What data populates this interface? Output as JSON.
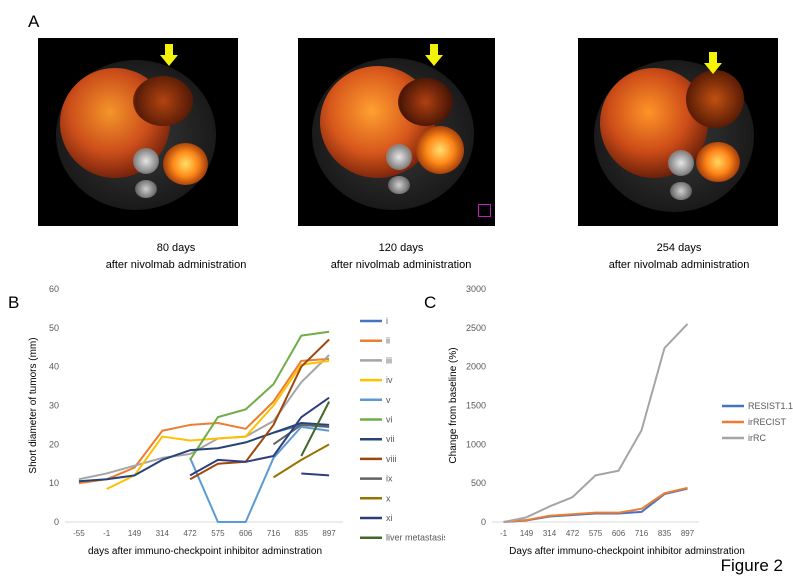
{
  "panel_a": {
    "letter": "A",
    "captions": [
      {
        "days": "80 days",
        "text": "after nivolmab administration"
      },
      {
        "days": "120 days",
        "text": "after nivolmab administration"
      },
      {
        "days": "254 days",
        "text": "after nivolmab administration"
      }
    ],
    "arrow_color": "#f5f20a"
  },
  "figure_label": "Figure 2",
  "chart_data": [
    {
      "type": "line",
      "letter": "B",
      "categories": [
        "-55",
        "-1",
        "149",
        "314",
        "472",
        "575",
        "606",
        "716",
        "835",
        "897"
      ],
      "ylabel": "Short diameter of tumors (mm)",
      "xlabel": "days after immuno-checkpoint inhibitor adminstration",
      "ylim": [
        0,
        60
      ],
      "yticks": [
        0,
        10,
        20,
        30,
        40,
        50,
        60
      ],
      "grid": false,
      "legend_position": "right",
      "series": [
        {
          "name": "i",
          "color": "#4472c4",
          "values": [
            null,
            null,
            null,
            null,
            null,
            null,
            null,
            23,
            25,
            24.5
          ]
        },
        {
          "name": "ii",
          "color": "#ed7d31",
          "values": [
            10,
            11,
            14,
            23.5,
            25,
            25.5,
            24,
            31,
            41.5,
            42
          ]
        },
        {
          "name": "iii",
          "color": "#a5a5a5",
          "values": [
            11,
            12.5,
            14.5,
            16.5,
            17.5,
            21.5,
            22,
            26,
            36,
            43
          ]
        },
        {
          "name": "iv",
          "color": "#ffc000",
          "values": [
            null,
            8.5,
            12,
            22,
            21,
            21.5,
            22,
            30,
            40.5,
            41.5
          ]
        },
        {
          "name": "v",
          "color": "#5b9bd5",
          "values": [
            null,
            null,
            null,
            null,
            16.5,
            0,
            0,
            16.5,
            24.5,
            23.5
          ]
        },
        {
          "name": "vi",
          "color": "#70ad47",
          "values": [
            null,
            null,
            null,
            null,
            16,
            27,
            29,
            35.5,
            48,
            49
          ]
        },
        {
          "name": "vii",
          "color": "#264478",
          "values": [
            10.5,
            11,
            12,
            16,
            18.5,
            19,
            20.5,
            23,
            25.5,
            25
          ]
        },
        {
          "name": "viii",
          "color": "#9e480e",
          "values": [
            null,
            null,
            null,
            null,
            11,
            15,
            15.5,
            25,
            40,
            47
          ]
        },
        {
          "name": "ix",
          "color": "#636363",
          "values": [
            null,
            null,
            null,
            null,
            null,
            null,
            null,
            20,
            25,
            24.5
          ]
        },
        {
          "name": "x",
          "color": "#997300",
          "values": [
            null,
            null,
            null,
            null,
            null,
            null,
            null,
            11.5,
            16,
            20
          ]
        },
        {
          "name": "xi",
          "color": "#2f3f7d",
          "values": [
            null,
            null,
            null,
            null,
            12,
            16,
            15.5,
            17,
            27,
            32
          ]
        },
        {
          "name": "liver metastasis",
          "color": "#43682b",
          "values": [
            null,
            null,
            null,
            null,
            null,
            null,
            null,
            null,
            17,
            31
          ]
        }
      ],
      "extra_segments": [
        {
          "series": "xi",
          "from": 8,
          "to": 9,
          "values": [
            12.5,
            12
          ]
        }
      ]
    },
    {
      "type": "line",
      "letter": "C",
      "categories": [
        "-1",
        "149",
        "314",
        "472",
        "575",
        "606",
        "716",
        "835",
        "897"
      ],
      "ylabel": "Change from baseline (%)",
      "xlabel": "Days after immuno-checkpoint inhibitor adminstration",
      "ylim": [
        0,
        3000
      ],
      "yticks": [
        0,
        500,
        1000,
        1500,
        2000,
        2500,
        3000
      ],
      "grid": false,
      "legend_position": "right",
      "series": [
        {
          "name": "RESIST1.1v",
          "color": "#4472c4",
          "values": [
            0,
            20,
            70,
            90,
            110,
            110,
            130,
            360,
            430
          ]
        },
        {
          "name": "irRECIST",
          "color": "#ed7d31",
          "values": [
            0,
            25,
            80,
            100,
            120,
            120,
            170,
            370,
            440
          ]
        },
        {
          "name": "irRC",
          "color": "#a5a5a5",
          "values": [
            0,
            60,
            200,
            320,
            600,
            660,
            1180,
            2240,
            2550
          ]
        }
      ]
    }
  ]
}
